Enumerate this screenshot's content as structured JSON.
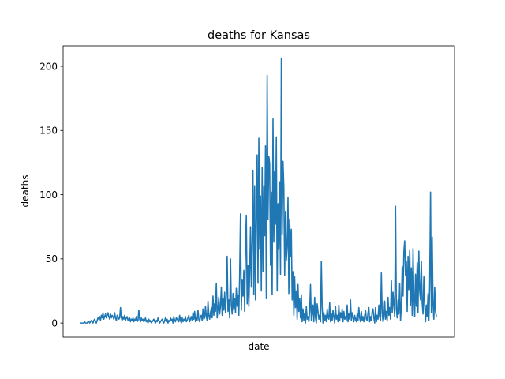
{
  "chart_data": {
    "type": "line",
    "title": "deaths for Kansas",
    "xlabel": "date",
    "ylabel": "deaths",
    "ylim": [
      -11,
      216
    ],
    "yticks": [
      0,
      50,
      100,
      150,
      200
    ],
    "xticks": [],
    "grid": false,
    "legend": "none",
    "series": [
      {
        "color": "#1f77b4",
        "values": [
          0,
          0,
          0,
          0,
          0,
          1,
          0,
          0,
          0,
          1,
          1,
          0,
          1,
          2,
          1,
          0,
          2,
          3,
          1,
          0,
          2,
          4,
          3,
          5,
          2,
          6,
          4,
          8,
          3,
          5,
          7,
          4,
          6,
          8,
          5,
          3,
          7,
          4,
          6,
          5,
          3,
          8,
          4,
          2,
          6,
          5,
          3,
          4,
          12,
          4,
          2,
          5,
          3,
          6,
          2,
          4,
          5,
          2,
          3,
          4,
          1,
          3,
          2,
          4,
          1,
          3,
          2,
          5,
          1,
          2,
          10,
          3,
          1,
          4,
          2,
          3,
          1,
          2,
          4,
          1,
          2,
          0,
          3,
          1,
          2,
          0,
          1,
          2,
          3,
          1,
          0,
          2,
          1,
          4,
          2,
          0,
          1,
          2,
          3,
          1,
          0,
          2,
          4,
          1,
          3,
          0,
          2,
          1,
          4,
          2,
          3,
          0,
          5,
          2,
          1,
          4,
          3,
          2,
          1,
          6,
          2,
          0,
          4,
          1,
          3,
          2,
          5,
          1,
          2,
          4,
          6,
          1,
          3,
          5,
          2,
          8,
          3,
          9,
          1,
          4,
          2,
          10,
          3,
          1,
          5,
          6,
          2,
          11,
          3,
          4,
          13,
          5,
          2,
          17,
          6,
          3,
          8,
          12,
          4,
          21,
          6,
          15,
          9,
          31,
          4,
          11,
          20,
          7,
          13,
          28,
          6,
          19,
          10,
          24,
          8,
          22,
          52,
          9,
          18,
          4,
          50,
          14,
          7,
          23,
          11,
          19,
          8,
          27,
          13,
          22,
          6,
          38,
          85,
          10,
          34,
          21,
          41,
          9,
          60,
          84,
          15,
          45,
          13,
          38,
          75,
          28,
          64,
          119,
          22,
          107,
          18,
          85,
          131,
          31,
          144,
          58,
          99,
          25,
          121,
          40,
          107,
          68,
          138,
          19,
          193,
          81,
          130,
          124,
          45,
          102,
          22,
          159,
          63,
          118,
          77,
          145,
          25,
          93,
          58,
          110,
          38,
          206,
          69,
          126,
          106,
          37,
          87,
          49,
          60,
          98,
          23,
          81,
          52,
          73,
          18,
          40,
          6,
          36,
          12,
          25,
          3,
          30,
          9,
          19,
          4,
          22,
          1,
          11,
          2,
          7,
          0,
          13,
          3,
          5,
          1,
          9,
          30,
          2,
          7,
          14,
          1,
          20,
          4,
          0,
          15,
          9,
          3,
          6,
          1,
          48,
          12,
          0,
          8,
          2,
          6,
          1,
          11,
          4,
          3,
          16,
          1,
          7,
          2,
          10,
          5,
          0,
          13,
          3,
          6,
          1,
          14,
          2,
          8,
          4,
          11,
          1,
          9,
          3,
          5,
          2,
          14,
          1,
          7,
          3,
          18,
          2,
          8,
          4,
          1,
          6,
          3,
          1,
          7,
          2,
          12,
          4,
          1,
          9,
          2,
          5,
          1,
          6,
          10,
          3,
          2,
          8,
          12,
          1,
          5,
          2,
          9,
          11,
          4,
          0,
          12,
          1,
          6,
          3,
          14,
          5,
          2,
          39,
          8,
          1,
          4,
          17,
          3,
          9,
          2,
          20,
          6,
          12,
          3,
          33,
          8,
          24,
          14,
          5,
          91,
          11,
          4,
          18,
          7,
          31,
          2,
          13,
          44,
          21,
          56,
          64,
          37,
          48,
          9,
          52,
          26,
          57,
          14,
          43,
          6,
          58,
          22,
          5,
          38,
          13,
          47,
          8,
          56,
          25,
          18,
          48,
          16,
          7,
          36,
          15,
          1,
          14,
          5,
          23,
          2,
          29,
          102,
          8,
          67,
          14,
          3,
          28,
          9,
          5
        ]
      }
    ]
  }
}
